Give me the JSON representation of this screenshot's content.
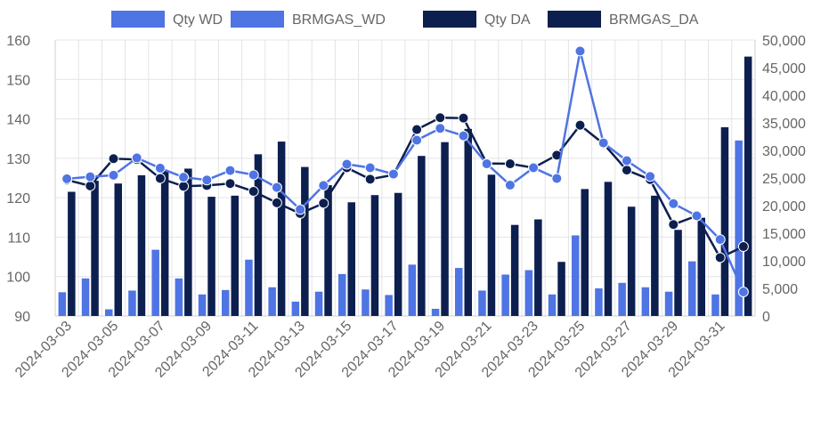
{
  "chart_data": {
    "type": "bar",
    "title": "",
    "xlabel": "",
    "ylabel": "",
    "y2label": "",
    "legend_position": "top",
    "grid": true,
    "ylim": [
      90,
      160
    ],
    "y2lim": [
      0,
      50000
    ],
    "y_ticks": [
      "90",
      "100",
      "110",
      "120",
      "130",
      "140",
      "150",
      "160"
    ],
    "y2_ticks": [
      "0",
      "5,000",
      "10,000",
      "15,000",
      "20,000",
      "25,000",
      "30,000",
      "35,000",
      "40,000",
      "45,000",
      "50,000"
    ],
    "x_tick_labels": [
      "2024-03-03",
      "2024-03-05",
      "2024-03-07",
      "2024-03-09",
      "2024-03-11",
      "2024-03-13",
      "2024-03-15",
      "2024-03-17",
      "2024-03-19",
      "2024-03-21",
      "2024-03-23",
      "2024-03-25",
      "2024-03-27",
      "2024-03-29",
      "2024-03-31"
    ],
    "categories": [
      "2024-03-03",
      "2024-03-04",
      "2024-03-05",
      "2024-03-06",
      "2024-03-07",
      "2024-03-08",
      "2024-03-09",
      "2024-03-10",
      "2024-03-11",
      "2024-03-12",
      "2024-03-13",
      "2024-03-14",
      "2024-03-15",
      "2024-03-16",
      "2024-03-17",
      "2024-03-18",
      "2024-03-19",
      "2024-03-20",
      "2024-03-21",
      "2024-03-22",
      "2024-03-23",
      "2024-03-24",
      "2024-03-25",
      "2024-03-26",
      "2024-03-27",
      "2024-03-28",
      "2024-03-29",
      "2024-03-30",
      "2024-03-31",
      "2024-04-01"
    ],
    "series": [
      {
        "name": "Qty WD",
        "type": "bar",
        "axis": "right",
        "color": "#4f74e3",
        "values": [
          4300,
          6800,
          1200,
          4600,
          12000,
          6800,
          3900,
          4700,
          10200,
          5200,
          2600,
          4400,
          7600,
          4800,
          3800,
          9300,
          1300,
          8700,
          4600,
          7500,
          8300,
          3900,
          14600,
          5000,
          6000,
          5200,
          4400,
          9900,
          3900,
          31800
        ]
      },
      {
        "name": "BRMGAS_WD",
        "type": "line",
        "axis": "left",
        "color": "#4f74e3",
        "values": [
          124.8,
          125.3,
          125.7,
          130.1,
          127.5,
          125.2,
          124.5,
          126.9,
          125.8,
          122.6,
          117.0,
          123.1,
          128.5,
          127.6,
          126.0,
          134.6,
          137.6,
          135.7,
          128.6,
          123.2,
          127.6,
          124.9,
          157.2,
          133.9,
          129.4,
          125.4,
          118.5,
          115.4,
          109.4,
          96.1
        ]
      },
      {
        "name": "Qty DA",
        "type": "line",
        "axis": "left",
        "color": "#0c1f4f",
        "values": [
          124.5,
          123.0,
          129.9,
          129.7,
          124.9,
          122.9,
          123.1,
          123.6,
          121.6,
          118.7,
          116.0,
          118.6,
          127.6,
          124.7,
          125.8,
          137.3,
          140.3,
          140.2,
          128.7,
          128.6,
          127.6,
          130.8,
          138.4,
          133.7,
          127.0,
          124.6,
          113.2,
          115.4,
          104.8,
          107.6
        ]
      },
      {
        "name": "BRMGAS_DA",
        "type": "bar",
        "axis": "right",
        "color": "#0c1f4f",
        "values": [
          22500,
          24500,
          24000,
          25500,
          26300,
          26700,
          21600,
          21800,
          29300,
          31600,
          27000,
          23700,
          20600,
          21900,
          22300,
          29000,
          31500,
          33900,
          25600,
          16500,
          17500,
          9800,
          23000,
          24300,
          19800,
          21800,
          15600,
          17800,
          34200,
          47000
        ]
      }
    ]
  }
}
